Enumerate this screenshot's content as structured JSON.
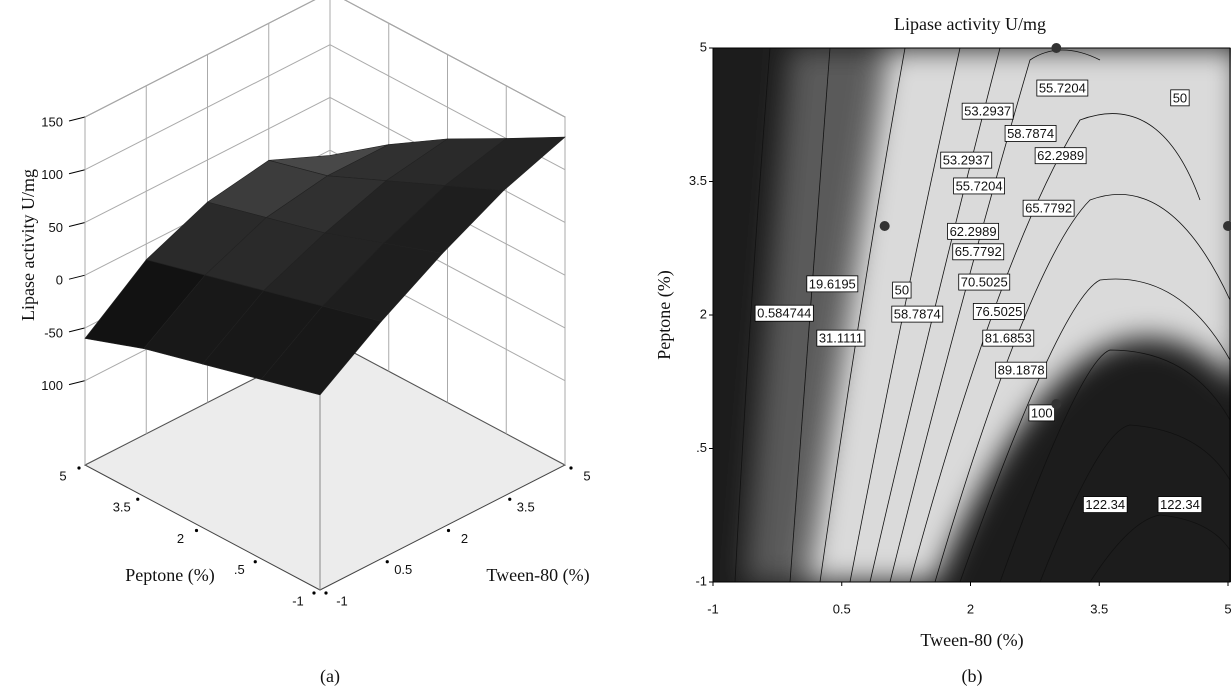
{
  "chart_data": [
    {
      "type": "surface3d",
      "caption": "(a)",
      "zlabel": "Lipase activity U/mg",
      "xlabel": "Tween-80 (%)",
      "ylabel": "Peptone (%)",
      "x": [
        -1,
        0.5,
        2,
        3.5,
        5
      ],
      "y": [
        -1,
        0.5,
        2,
        3.5,
        5
      ],
      "z": [
        [
          5,
          45,
          80,
          110,
          131
        ],
        [
          -10,
          30,
          60,
          85,
          100
        ],
        [
          -25,
          15,
          40,
          60,
          70
        ],
        [
          -40,
          0,
          25,
          35,
          35
        ],
        [
          -60,
          -15,
          10,
          20,
          -5
        ]
      ],
      "xlim": [
        -1,
        5
      ],
      "ylim": [
        -1,
        5
      ],
      "zlim": [
        -180,
        150
      ],
      "xticks": [
        -1,
        0.5,
        2,
        3.5,
        5
      ],
      "yticks": [
        -1,
        {
          "value": 0.5,
          "label": ".5"
        },
        2,
        3.5,
        5
      ],
      "zticks": [
        150,
        100,
        50,
        0,
        -50,
        {
          "value": -100,
          "label": "100"
        }
      ],
      "color": "#111111",
      "grid": true
    },
    {
      "type": "contour",
      "caption": "(b)",
      "title": "Lipase activity U/mg",
      "xlabel": "Tween-80 (%)",
      "ylabel": "Peptone (%)",
      "xlim": [
        -1,
        5
      ],
      "ylim": [
        -1,
        5
      ],
      "xticks": [
        -1,
        0.5,
        2,
        3.5,
        5
      ],
      "yticks": [
        -1,
        {
          "value": 0.5,
          "label": ".5"
        },
        2,
        3.5,
        5
      ],
      "contour_labels": [
        {
          "value": 55.7204,
          "x": 3.07,
          "y": 4.55
        },
        {
          "value": 50,
          "x": 4.44,
          "y": 4.44
        },
        {
          "value": 53.2937,
          "x": 2.2,
          "y": 4.29
        },
        {
          "value": 58.7874,
          "x": 2.7,
          "y": 4.04
        },
        {
          "value": 53.2937,
          "x": 1.95,
          "y": 3.74
        },
        {
          "value": 62.2989,
          "x": 3.05,
          "y": 3.79
        },
        {
          "value": 55.7204,
          "x": 2.1,
          "y": 3.45
        },
        {
          "value": 65.7792,
          "x": 2.91,
          "y": 3.2
        },
        {
          "value": 62.2989,
          "x": 2.03,
          "y": 2.94
        },
        {
          "value": 65.7792,
          "x": 2.09,
          "y": 2.71
        },
        {
          "value": 19.6195,
          "x": 0.39,
          "y": 2.35
        },
        {
          "value": 50,
          "x": 1.2,
          "y": 2.28
        },
        {
          "value": 70.5025,
          "x": 2.16,
          "y": 2.37
        },
        {
          "value": 0.584744,
          "x": -0.17,
          "y": 2.02
        },
        {
          "value": 76.5025,
          "x": 2.33,
          "y": 2.04
        },
        {
          "value": 58.7874,
          "x": 1.38,
          "y": 2.01
        },
        {
          "value": 31.1111,
          "x": 0.49,
          "y": 1.74
        },
        {
          "value": 81.6853,
          "x": 2.44,
          "y": 1.74
        },
        {
          "value": 89.1878,
          "x": 2.59,
          "y": 1.38
        },
        {
          "value": 100,
          "x": 2.83,
          "y": 0.9
        },
        {
          "value": 122.34,
          "x": 3.57,
          "y": -0.13
        },
        {
          "value": 122.34,
          "x": 4.44,
          "y": -0.13
        }
      ],
      "points": {
        "x": [
          3,
          1,
          5,
          3
        ],
        "y": [
          5,
          3,
          3,
          1
        ],
        "color": "#333333"
      }
    }
  ]
}
